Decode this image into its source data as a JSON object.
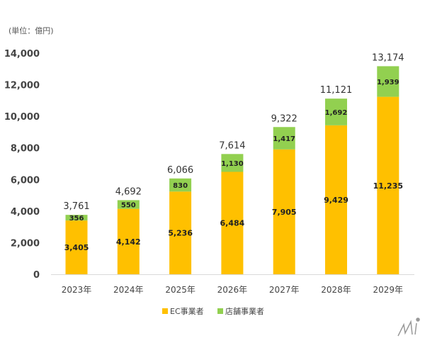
{
  "chart_data": {
    "type": "bar",
    "stacked": true,
    "unit_label": "(単位：億円)",
    "categories": [
      "2023年",
      "2024年",
      "2025年",
      "2026年",
      "2027年",
      "2028年",
      "2029年"
    ],
    "series": [
      {
        "name": "EC事業者",
        "color": "#FFC000",
        "values": [
          3405,
          4142,
          5236,
          6484,
          7905,
          9429,
          11235
        ]
      },
      {
        "name": "店舗事業者",
        "color": "#92D050",
        "values": [
          356,
          550,
          830,
          1130,
          1417,
          1692,
          1939
        ]
      }
    ],
    "totals": [
      3761,
      4692,
      6066,
      7614,
      9322,
      11121,
      13174
    ],
    "ylim": [
      0,
      14000
    ],
    "yticks": [
      0,
      2000,
      4000,
      6000,
      8000,
      10000,
      12000,
      14000
    ],
    "grid": false,
    "legend": "bottom"
  }
}
